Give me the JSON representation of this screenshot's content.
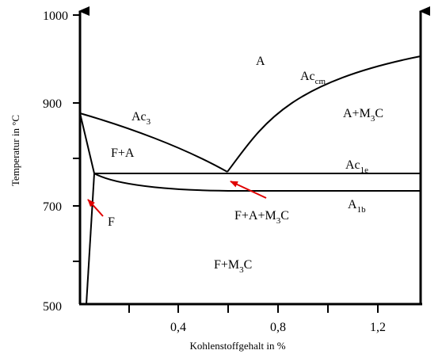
{
  "diagram": {
    "x_axis": {
      "title": "Kohlenstoffgehalt in %",
      "ticks": [
        "0,4",
        "0,8",
        "1,2"
      ]
    },
    "y_axis": {
      "title": "Temperatur in °C",
      "ticks": [
        "1000",
        "900",
        "700",
        "500"
      ]
    },
    "regions": {
      "a": "A",
      "f_a": "F+A",
      "a_m3c": {
        "main": "A+M",
        "sub": "3",
        "tail": "C"
      },
      "f_a_m3c": {
        "main": "F+A+M",
        "sub": "3",
        "tail": "C"
      },
      "f_m3c": {
        "main": "F+M",
        "sub": "3",
        "tail": "C"
      },
      "f": "F"
    },
    "curve_labels": {
      "ac3": {
        "main": "Ac",
        "sub": "3"
      },
      "accm": {
        "main": "Ac",
        "sub": "cm"
      },
      "ac1e": {
        "main": "Ac",
        "sub": "1e"
      },
      "a1b": {
        "main": "A",
        "sub": "1b"
      }
    },
    "colors": {
      "lines": "#000000",
      "arrows": "#e00000"
    }
  }
}
